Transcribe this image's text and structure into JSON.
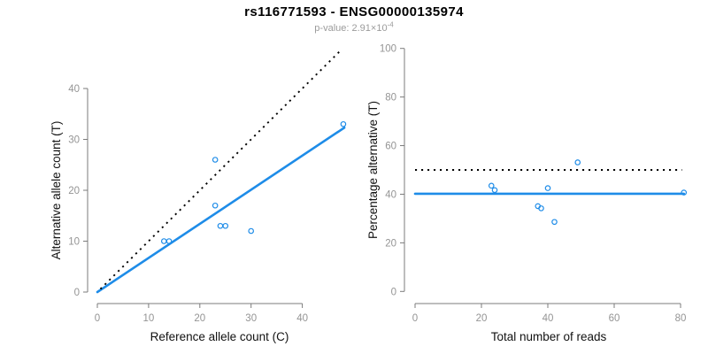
{
  "header": {
    "title": "rs116771593 - ENSG00000135974",
    "subtitle_prefix": "p-value: 2.91×10",
    "subtitle_exponent": "-4"
  },
  "colors": {
    "point": "#1e8ce8",
    "fit_line": "#1e8ce8",
    "reference_line": "#000000",
    "axis_line": "#7b7b7b",
    "tick_label": "#949494",
    "axis_label": "#111111",
    "title": "#000000",
    "subtitle": "#9b9b9b"
  },
  "chart_data": [
    {
      "name": "allele-count-scatter",
      "type": "scatter",
      "title": "",
      "xlabel": "Reference allele count (C)",
      "ylabel": "Alternative allele count (T)",
      "xticks": [
        0,
        10,
        20,
        30,
        40
      ],
      "yticks": [
        0,
        10,
        20,
        30,
        40
      ],
      "xlim": [
        0,
        48.5
      ],
      "ylim": [
        0,
        47.8
      ],
      "grid": false,
      "legend": "none",
      "points": [
        [
          13,
          10
        ],
        [
          14,
          10
        ],
        [
          23,
          17
        ],
        [
          23,
          26
        ],
        [
          24,
          13
        ],
        [
          25,
          13
        ],
        [
          30,
          12
        ],
        [
          48,
          33
        ]
      ],
      "lines": [
        {
          "name": "fit-line",
          "style": "solid",
          "color_key": "fit_line",
          "from": [
            0,
            0
          ],
          "to": [
            48.2,
            32.3
          ]
        },
        {
          "name": "identity-line",
          "style": "dotted",
          "color_key": "reference_line",
          "from": [
            0.6,
            0.6
          ],
          "to": [
            47.7,
            47.7
          ]
        }
      ]
    },
    {
      "name": "percentage-scatter",
      "type": "scatter",
      "title": "",
      "xlabel": "Total number of reads",
      "ylabel": "Percentage alternative (T)",
      "xticks": [
        0,
        20,
        40,
        60,
        80
      ],
      "yticks": [
        0,
        20,
        40,
        60,
        80,
        100
      ],
      "xlim": [
        0,
        81.5
      ],
      "ylim": [
        0,
        100
      ],
      "grid": false,
      "legend": "none",
      "points": [
        [
          23,
          43.5
        ],
        [
          24,
          41.7
        ],
        [
          37,
          35.1
        ],
        [
          38,
          34.2
        ],
        [
          40,
          42.5
        ],
        [
          42,
          28.6
        ],
        [
          49,
          53.1
        ],
        [
          81,
          40.7
        ]
      ],
      "lines": [
        {
          "name": "mean-line",
          "style": "solid",
          "color_key": "fit_line",
          "from": [
            0,
            40.2
          ],
          "to": [
            81,
            40.2
          ]
        },
        {
          "name": "expected-line",
          "style": "dotted",
          "color_key": "reference_line",
          "from": [
            0,
            50
          ],
          "to": [
            80.4,
            50
          ]
        }
      ]
    }
  ]
}
